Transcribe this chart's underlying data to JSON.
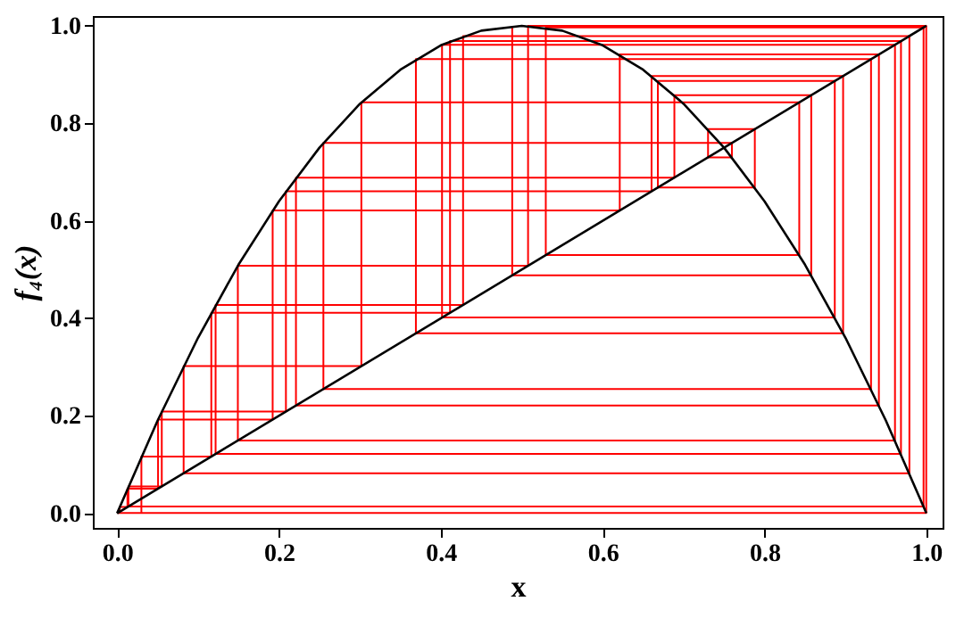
{
  "chart_data": {
    "type": "line",
    "xlabel": "x",
    "ylabel": "f₄(x)",
    "xlim": [
      -0.03,
      1.02
    ],
    "ylim": [
      -0.03,
      1.02
    ],
    "xticks": [
      {
        "value": 0,
        "label": "0.0"
      },
      0.2,
      0.4,
      0.6,
      0.8,
      {
        "value": 1,
        "label": "1.0"
      }
    ],
    "yticks": [
      {
        "value": 0,
        "label": "0.0"
      },
      0.2,
      0.4,
      0.6,
      0.8,
      {
        "value": 1,
        "label": "1.0"
      }
    ],
    "grid": false,
    "marker": "none",
    "line_style": "solid",
    "series": [
      {
        "color": "#ff0000",
        "x": [
          0.03,
          0.03,
          0.1164,
          0.1164,
          0.4114,
          0.4114,
          0.9686,
          0.9686,
          0.1217,
          0.1217,
          0.4275,
          0.4275,
          0.979,
          0.979,
          0.0822,
          0.0822,
          0.3018,
          0.3018,
          0.8429,
          0.8429,
          0.5297,
          0.5297,
          0.9965,
          0.9965,
          0.014,
          0.014,
          0.0552,
          0.0552,
          0.2086,
          0.2086,
          0.6604,
          0.6604,
          0.8971,
          0.8971,
          0.3692,
          0.3692,
          0.9316,
          0.9316,
          0.2549,
          0.2549,
          0.7597,
          0.7597,
          0.7302,
          0.7302,
          0.788,
          0.788,
          0.6682,
          0.6682,
          0.8868,
          0.8868,
          0.4015,
          0.4015,
          0.9612,
          0.9612,
          0.1492,
          0.1492,
          0.5078,
          0.5078,
          0.9998,
          0.9998,
          0.0008,
          0.0008,
          0.0032,
          0.0032,
          0.0128,
          0.0128,
          0.0506,
          0.0506,
          0.1922,
          0.1922,
          0.6211,
          0.6211,
          0.9413,
          0.9413,
          0.221,
          0.221,
          0.6886,
          0.6886,
          0.8577,
          0.8577,
          0.4882,
          0.4882
        ],
        "values": [
          0,
          0.1164,
          0.1164,
          0.4114,
          0.4114,
          0.9686,
          0.9686,
          0.1217,
          0.1217,
          0.4275,
          0.4275,
          0.979,
          0.979,
          0.0822,
          0.0822,
          0.3018,
          0.3018,
          0.8429,
          0.8429,
          0.5297,
          0.5297,
          0.9965,
          0.9965,
          0.014,
          0.014,
          0.0552,
          0.0552,
          0.2086,
          0.2086,
          0.6604,
          0.6604,
          0.8971,
          0.8971,
          0.3692,
          0.3692,
          0.9316,
          0.9316,
          0.2549,
          0.2549,
          0.7597,
          0.7597,
          0.7302,
          0.7302,
          0.788,
          0.788,
          0.6682,
          0.6682,
          0.8868,
          0.8868,
          0.4015,
          0.4015,
          0.9612,
          0.9612,
          0.1492,
          0.1492,
          0.5078,
          0.5078,
          0.9998,
          0.9998,
          0.0008,
          0.0008,
          0.0032,
          0.0032,
          0.0128,
          0.0128,
          0.0506,
          0.0506,
          0.1922,
          0.1922,
          0.6211,
          0.6211,
          0.9413,
          0.9413,
          0.221,
          0.221,
          0.6886,
          0.6886,
          0.8577,
          0.8577,
          0.4882,
          0.4882,
          0.9994
        ]
      },
      {
        "color": "#000000",
        "x": [
          0,
          0.05,
          0.1,
          0.15,
          0.2,
          0.25,
          0.3,
          0.35,
          0.4,
          0.45,
          0.5,
          0.55,
          0.6,
          0.65,
          0.7,
          0.75,
          0.8,
          0.85,
          0.9,
          0.95,
          1
        ],
        "values": [
          0,
          0.19,
          0.36,
          0.51,
          0.64,
          0.75,
          0.84,
          0.91,
          0.96,
          0.99,
          1,
          0.99,
          0.96,
          0.91,
          0.84,
          0.75,
          0.64,
          0.51,
          0.36,
          0.19,
          0
        ]
      },
      {
        "color": "#000000",
        "x": [
          0,
          1
        ],
        "values": [
          0,
          1
        ]
      }
    ]
  }
}
